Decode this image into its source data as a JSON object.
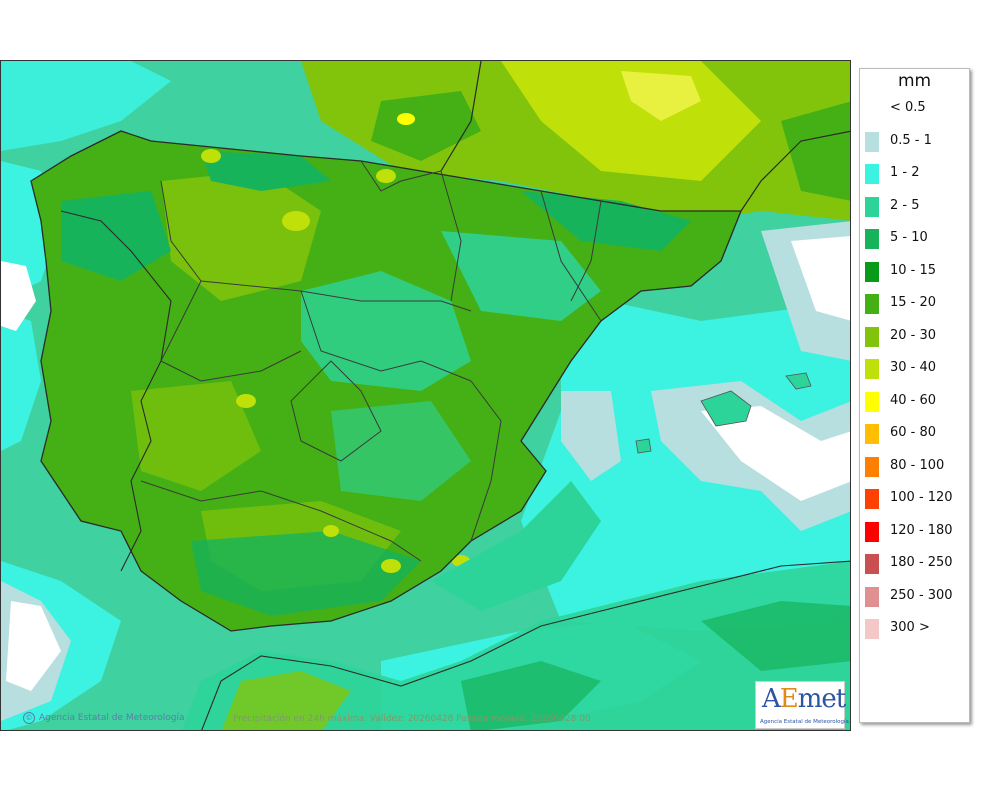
{
  "legend": {
    "unit": "mm",
    "items": [
      {
        "label": "< 0.5",
        "color": "#ffffff"
      },
      {
        "label": "0.5 - 1",
        "color": "#b7dfe0"
      },
      {
        "label": "1 - 2",
        "color": "#3cf2e0"
      },
      {
        "label": "2 - 5",
        "color": "#2dd49a"
      },
      {
        "label": "5 - 10",
        "color": "#16b35a"
      },
      {
        "label": "10 - 15",
        "color": "#0a9a1a"
      },
      {
        "label": "15 - 20",
        "color": "#44b015"
      },
      {
        "label": "20 - 30",
        "color": "#82c40c"
      },
      {
        "label": "30 - 40",
        "color": "#c0e00a"
      },
      {
        "label": "40 - 60",
        "color": "#ffff00"
      },
      {
        "label": "60 - 80",
        "color": "#ffbe00"
      },
      {
        "label": "80 - 100",
        "color": "#ff7f00"
      },
      {
        "label": "100 - 120",
        "color": "#ff4000"
      },
      {
        "label": "120 - 180",
        "color": "#ff0000"
      },
      {
        "label": "180 - 250",
        "color": "#c85050"
      },
      {
        "label": "250 - 300",
        "color": "#e09090"
      },
      {
        "label": "300 >",
        "color": "#f5c8c8"
      }
    ]
  },
  "credit": "Agencia Estatal de Meteorología",
  "caption": "Precipitación en 24h máxima. Validez: 20260428 Pasada modelo: 20260428 00",
  "logo": {
    "brand_a": "A",
    "brand_e": "E",
    "brand_rest": "met",
    "subtitle": "Agencia Estatal de Meteorología"
  }
}
